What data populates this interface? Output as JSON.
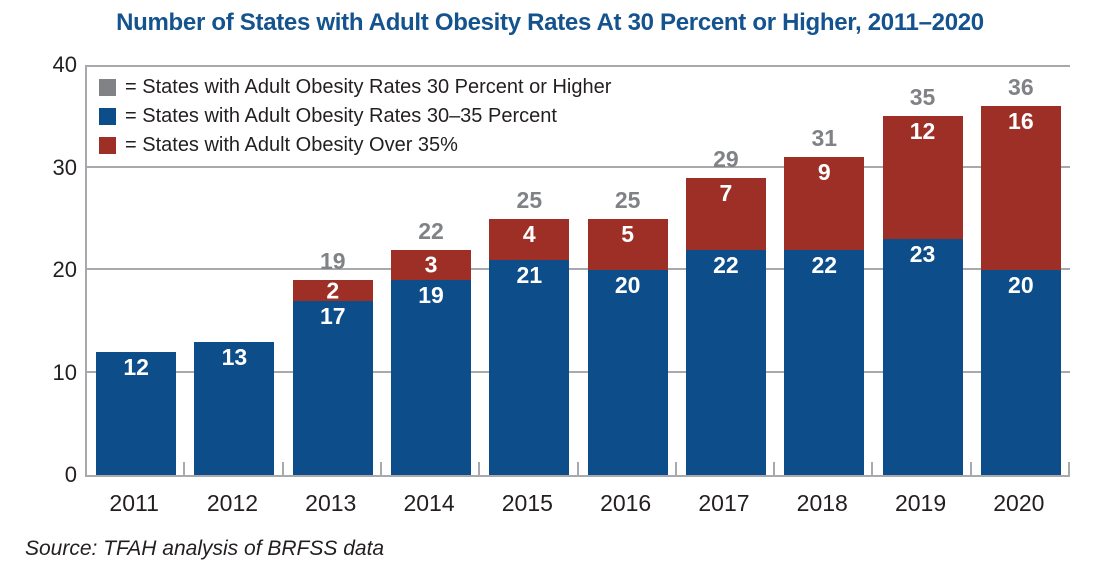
{
  "title": "Number of States with Adult Obesity Rates At 30 Percent or Higher, 2011–2020",
  "source_note": "Source: TFAH analysis of BRFSS data",
  "colors": {
    "title_blue": "#15538F",
    "bar_blue": "#0D4D89",
    "bar_red": "#9E2F27",
    "total_gray": "#808285",
    "legend_gray": "#808285",
    "axis_gray": "#A7A9AC",
    "text_black": "#231F20"
  },
  "legend": {
    "items": [
      {
        "name": "total-30-or-higher",
        "color": "#808285",
        "label": "= States with Adult Obesity Rates 30 Percent or Higher"
      },
      {
        "name": "rates-30-35",
        "color": "#0D4D89",
        "label": "= States with Adult Obesity Rates 30–35 Percent"
      },
      {
        "name": "over-35",
        "color": "#9E2F27",
        "label": "= States with Adult Obesity Over 35%"
      }
    ]
  },
  "chart_data": {
    "type": "bar",
    "stacked": true,
    "title": "Number of States with Adult Obesity Rates At 30 Percent or Higher, 2011–2020",
    "categories": [
      "2011",
      "2012",
      "2013",
      "2014",
      "2015",
      "2016",
      "2017",
      "2018",
      "2019",
      "2020"
    ],
    "series": [
      {
        "name": "States with Adult Obesity Rates 30–35 Percent",
        "color": "#0D4D89",
        "values": [
          12,
          13,
          17,
          19,
          21,
          20,
          22,
          22,
          23,
          20
        ]
      },
      {
        "name": "States with Adult Obesity Over 35%",
        "color": "#9E2F27",
        "values": [
          0,
          0,
          2,
          3,
          4,
          5,
          7,
          9,
          12,
          16
        ]
      }
    ],
    "total_labels": [
      null,
      null,
      19,
      22,
      25,
      25,
      29,
      31,
      35,
      36
    ],
    "total_label_series": "States with Adult Obesity Rates 30 Percent or Higher",
    "total_label_color": "#808285",
    "xlabel": "",
    "ylabel": "",
    "ylim": [
      0,
      40
    ],
    "yticks": [
      0,
      10,
      20,
      30,
      40
    ],
    "grid": "horizontal",
    "legend_position": "top-left-inside"
  }
}
